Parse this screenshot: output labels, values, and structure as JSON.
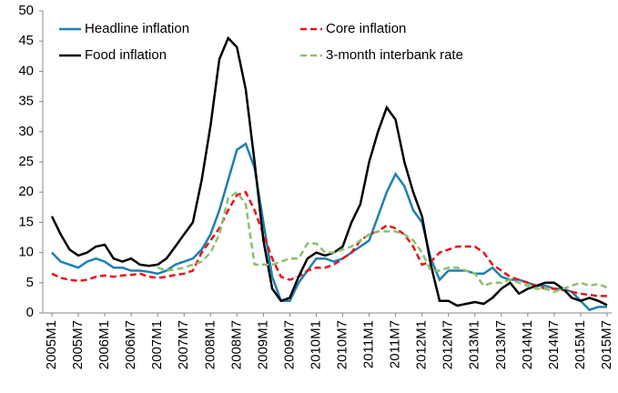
{
  "chart_data": {
    "type": "line",
    "categories": [
      "2005M1",
      null,
      null,
      "2005M7",
      null,
      null,
      "2006M1",
      null,
      null,
      "2006M7",
      null,
      null,
      "2007M1",
      null,
      null,
      "2007M7",
      null,
      null,
      "2008M1",
      null,
      null,
      "2008M7",
      null,
      null,
      "2009M1",
      null,
      null,
      "2009M7",
      null,
      null,
      "2010M1",
      null,
      null,
      "2010M7",
      null,
      null,
      "2011M1",
      null,
      null,
      "2011M7",
      null,
      null,
      "2012M1",
      null,
      null,
      "2012M7",
      null,
      null,
      "2013M1",
      null,
      null,
      "2013M7",
      null,
      null,
      "2014M1",
      null,
      null,
      "2014M7",
      null,
      null,
      "2015M1",
      null,
      null,
      "2015M7"
    ],
    "series": [
      {
        "name": "Headline inflation",
        "color": "#1f7fb0",
        "dash": false,
        "values": [
          10,
          8.5,
          8,
          7.5,
          8.5,
          9,
          8.5,
          7.5,
          7.5,
          7,
          7,
          6.8,
          6.5,
          7,
          8,
          8.5,
          9,
          10.5,
          13,
          17,
          22,
          27,
          28,
          24,
          15,
          6,
          2,
          2,
          5,
          7,
          9,
          9,
          8.5,
          9,
          10,
          11,
          12,
          16,
          20,
          23,
          21,
          17,
          15,
          9,
          5.5,
          7,
          7,
          7,
          6.5,
          6.5,
          7.5,
          6,
          5.5,
          5.5,
          5,
          4.5,
          4.5,
          4,
          4,
          3.5,
          2,
          0.5,
          1,
          1
        ]
      },
      {
        "name": "Core inflation",
        "color": "#e8141a",
        "dash": true,
        "values": [
          6.5,
          5.8,
          5.5,
          5.3,
          5.5,
          6,
          6.2,
          6,
          6.2,
          6.3,
          6.5,
          6,
          5.8,
          6,
          6.3,
          6.5,
          7,
          10,
          12,
          14,
          17,
          19.5,
          20,
          17,
          13,
          9,
          6,
          5.5,
          6,
          7,
          7.5,
          7.5,
          8,
          9,
          10,
          12,
          13,
          13.5,
          14.5,
          14,
          13,
          11,
          8,
          8.5,
          10,
          10.5,
          11,
          11,
          11,
          10,
          8,
          7,
          6,
          5.5,
          5,
          4.5,
          4,
          4,
          3.8,
          3.5,
          3.2,
          3,
          2.8,
          2.8
        ]
      },
      {
        "name": "Food inflation",
        "color": "#000000",
        "dash": false,
        "values": [
          16,
          13,
          10.5,
          9.5,
          10,
          11,
          11.3,
          9,
          8.5,
          9,
          8,
          7.8,
          8,
          9,
          11,
          13,
          15,
          22,
          31,
          42,
          45.5,
          44,
          37,
          25,
          12,
          4,
          2,
          2.5,
          6,
          9,
          10,
          9.5,
          10,
          11,
          15,
          18,
          25,
          30,
          34,
          32,
          25,
          20,
          16,
          8,
          2,
          2,
          1.2,
          1.5,
          1.8,
          1.5,
          2.5,
          4,
          5,
          3.2,
          4,
          4.5,
          5,
          5,
          4,
          2.5,
          2,
          2.5,
          2,
          1.3
        ]
      },
      {
        "name": "3-month interbank rate",
        "color": "#8cbf6f",
        "dash": true,
        "values": [
          null,
          null,
          null,
          null,
          null,
          null,
          null,
          null,
          null,
          null,
          null,
          null,
          7.5,
          7,
          7.2,
          7.5,
          8,
          8.5,
          10,
          13,
          19,
          20,
          18,
          8,
          8,
          8,
          8.5,
          9,
          9,
          11.5,
          11.5,
          10,
          10,
          10.5,
          11,
          12,
          13,
          13.5,
          13.5,
          13.5,
          13,
          12,
          10,
          7,
          7,
          7.5,
          7.5,
          7,
          6.5,
          4.5,
          5,
          5,
          5.5,
          5,
          4.5,
          4,
          4,
          3.5,
          4,
          4.5,
          5,
          4.5,
          4.8,
          4.2
        ]
      }
    ],
    "ylim": [
      0,
      50
    ],
    "yticks": [
      0,
      5,
      10,
      15,
      20,
      25,
      30,
      35,
      40,
      45,
      50
    ],
    "grid": false
  }
}
